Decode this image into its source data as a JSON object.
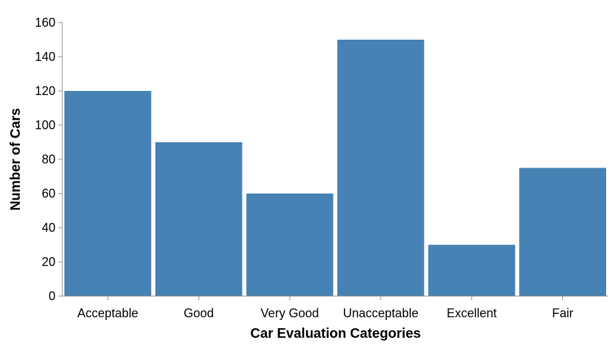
{
  "chart_data": {
    "type": "bar",
    "title": "",
    "xlabel": "Car Evaluation Categories",
    "ylabel": "Number of Cars",
    "categories": [
      "Acceptable",
      "Good",
      "Very Good",
      "Unacceptable",
      "Excellent",
      "Fair"
    ],
    "values": [
      120,
      90,
      60,
      150,
      30,
      75
    ],
    "ylim": [
      0,
      160
    ],
    "yticks": [
      0,
      20,
      40,
      60,
      80,
      100,
      120,
      140,
      160
    ],
    "grid": false,
    "legend": "none",
    "bar_color": "#4682b4",
    "axis_color": "#888888"
  }
}
